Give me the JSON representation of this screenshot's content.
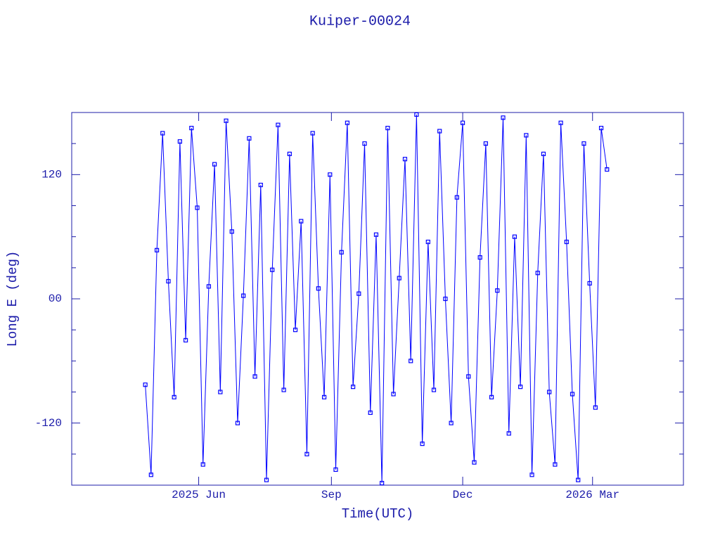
{
  "chart_data": {
    "type": "line",
    "title": "Kuiper-00024",
    "x_label": "Time(UTC)",
    "y_label": "Long E (deg)",
    "color": "#0000ff",
    "marker": "square",
    "x": [
      114,
      118,
      122,
      126,
      130,
      134,
      138,
      142,
      146,
      150,
      154,
      158,
      162,
      166,
      170,
      174,
      178,
      182,
      186,
      190,
      194,
      198,
      202,
      206,
      210,
      214,
      218,
      222,
      226,
      230,
      234,
      238,
      242,
      246,
      250,
      254,
      258,
      262,
      266,
      270,
      274,
      278,
      282,
      286,
      290,
      294,
      298,
      302,
      306,
      310,
      314,
      318,
      322,
      326,
      330,
      334,
      338,
      342,
      346,
      350,
      354,
      358,
      362,
      366,
      370,
      374,
      378,
      382,
      386,
      390,
      394,
      398,
      402,
      406,
      410,
      414,
      418,
      422,
      426,
      430,
      434
    ],
    "values": [
      -83,
      -170,
      47,
      160,
      17,
      -95,
      152,
      -40,
      165,
      88,
      -160,
      12,
      130,
      -90,
      172,
      65,
      -120,
      3,
      155,
      -75,
      110,
      -175,
      28,
      168,
      -88,
      140,
      -30,
      75,
      -150,
      160,
      10,
      -95,
      120,
      -165,
      45,
      170,
      -85,
      5,
      150,
      -110,
      62,
      -178,
      165,
      -92,
      20,
      135,
      -60,
      178,
      -140,
      55,
      -88,
      162,
      0,
      -120,
      98,
      170,
      -75,
      -158,
      40,
      150,
      -95,
      8,
      175,
      -130,
      60,
      -85,
      158,
      -170,
      25,
      140,
      -90,
      -160,
      170,
      55,
      -92,
      -175,
      150,
      15,
      -105,
      165,
      125
    ],
    "xlim": [
      63,
      487
    ],
    "xticks": [
      {
        "value": 151,
        "label": "2025 Jun"
      },
      {
        "value": 243,
        "label": "Sep"
      },
      {
        "value": 334,
        "label": "Dec"
      },
      {
        "value": 424,
        "label": "2026 Mar"
      }
    ],
    "ylim": [
      -180,
      180
    ],
    "yticks": [
      -120,
      {
        "value": 0,
        "label": "00"
      },
      120
    ],
    "yminorticks": [
      -150,
      -90,
      -60,
      -30,
      30,
      60,
      90,
      150
    ]
  }
}
